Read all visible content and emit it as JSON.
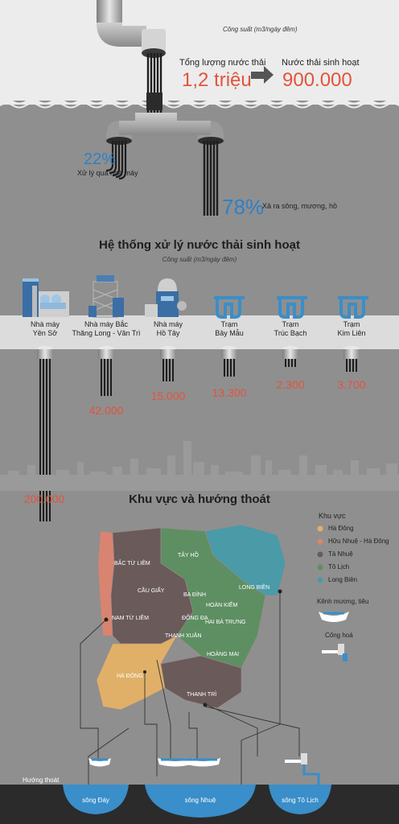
{
  "top": {
    "capacity_label": "Công suất (m3/ngày đêm)",
    "total_label": "Tổng lượng nước thải",
    "total_value": "1,2 triệu",
    "domestic_label": "Nước thải sinh hoạt",
    "domestic_value": "900.000",
    "treated_pct": "22%",
    "treated_label": "Xử lý qua nhà máy",
    "discharged_pct": "78%",
    "discharged_label": "Xả ra sông, mương, hồ"
  },
  "system": {
    "title": "Hệ thống xử lý nước thải sinh hoạt",
    "subtitle": "Công suất (m3/ngày đêm)",
    "plants": [
      {
        "line1": "Nhà máy",
        "line2": "Yên Sở",
        "value": "200.000",
        "icon": "factory-icon"
      },
      {
        "line1": "Nhà máy Bắc",
        "line2": "Thăng Long - Vân Trì",
        "value": "42.000",
        "icon": "factory-tower-icon"
      },
      {
        "line1": "Nhà máy",
        "line2": "Hồ Tây",
        "value": "15.000",
        "icon": "dome-factory-icon"
      },
      {
        "line1": "Trạm",
        "line2": "Bảy Mẫu",
        "value": "13.300",
        "icon": "station-icon"
      },
      {
        "line1": "Trạm",
        "line2": "Trúc Bạch",
        "value": "2.300",
        "icon": "station-icon"
      },
      {
        "line1": "Trạm",
        "line2": "Kim Liên",
        "value": "3.700",
        "icon": "station-icon"
      }
    ]
  },
  "map": {
    "title": "Khu vực và hướng thoát",
    "legend_title": "Khu vực",
    "legend": [
      {
        "label": "Hà Đông",
        "color": "#e0b068"
      },
      {
        "label": "Hữu Nhuệ - Hà Đông",
        "color": "#d98470"
      },
      {
        "label": "Tả Nhuệ",
        "color": "#6a5a5a"
      },
      {
        "label": "Tô Lịch",
        "color": "#5d8f62"
      },
      {
        "label": "Long Biên",
        "color": "#4a9aa8"
      }
    ],
    "canal_label": "Kênh mương, tiêu",
    "sluice_label": "Cống hoá",
    "districts": [
      "BẮC TỪ LIÊM",
      "TÂY HỒ",
      "LONG BIÊN",
      "CẦU GIẤY",
      "BA ĐÌNH",
      "HOÀN KIẾM",
      "NAM TỪ LIÊM",
      "ĐỐNG ĐA",
      "HAI BÀ TRƯNG",
      "THANH XUÂN",
      "HOÀNG MAI",
      "HÀ ĐÔNG",
      "THANH TRÌ"
    ],
    "outlet_label": "Hướng thoát",
    "rivers": [
      "sông Đáy",
      "sông Nhuệ",
      "sông Tô Lịch"
    ]
  },
  "colors": {
    "accent_red": "#e2543a",
    "accent_blue": "#2f80c5",
    "pipe": "#2b2b2b",
    "water": "#3a8ec9"
  }
}
